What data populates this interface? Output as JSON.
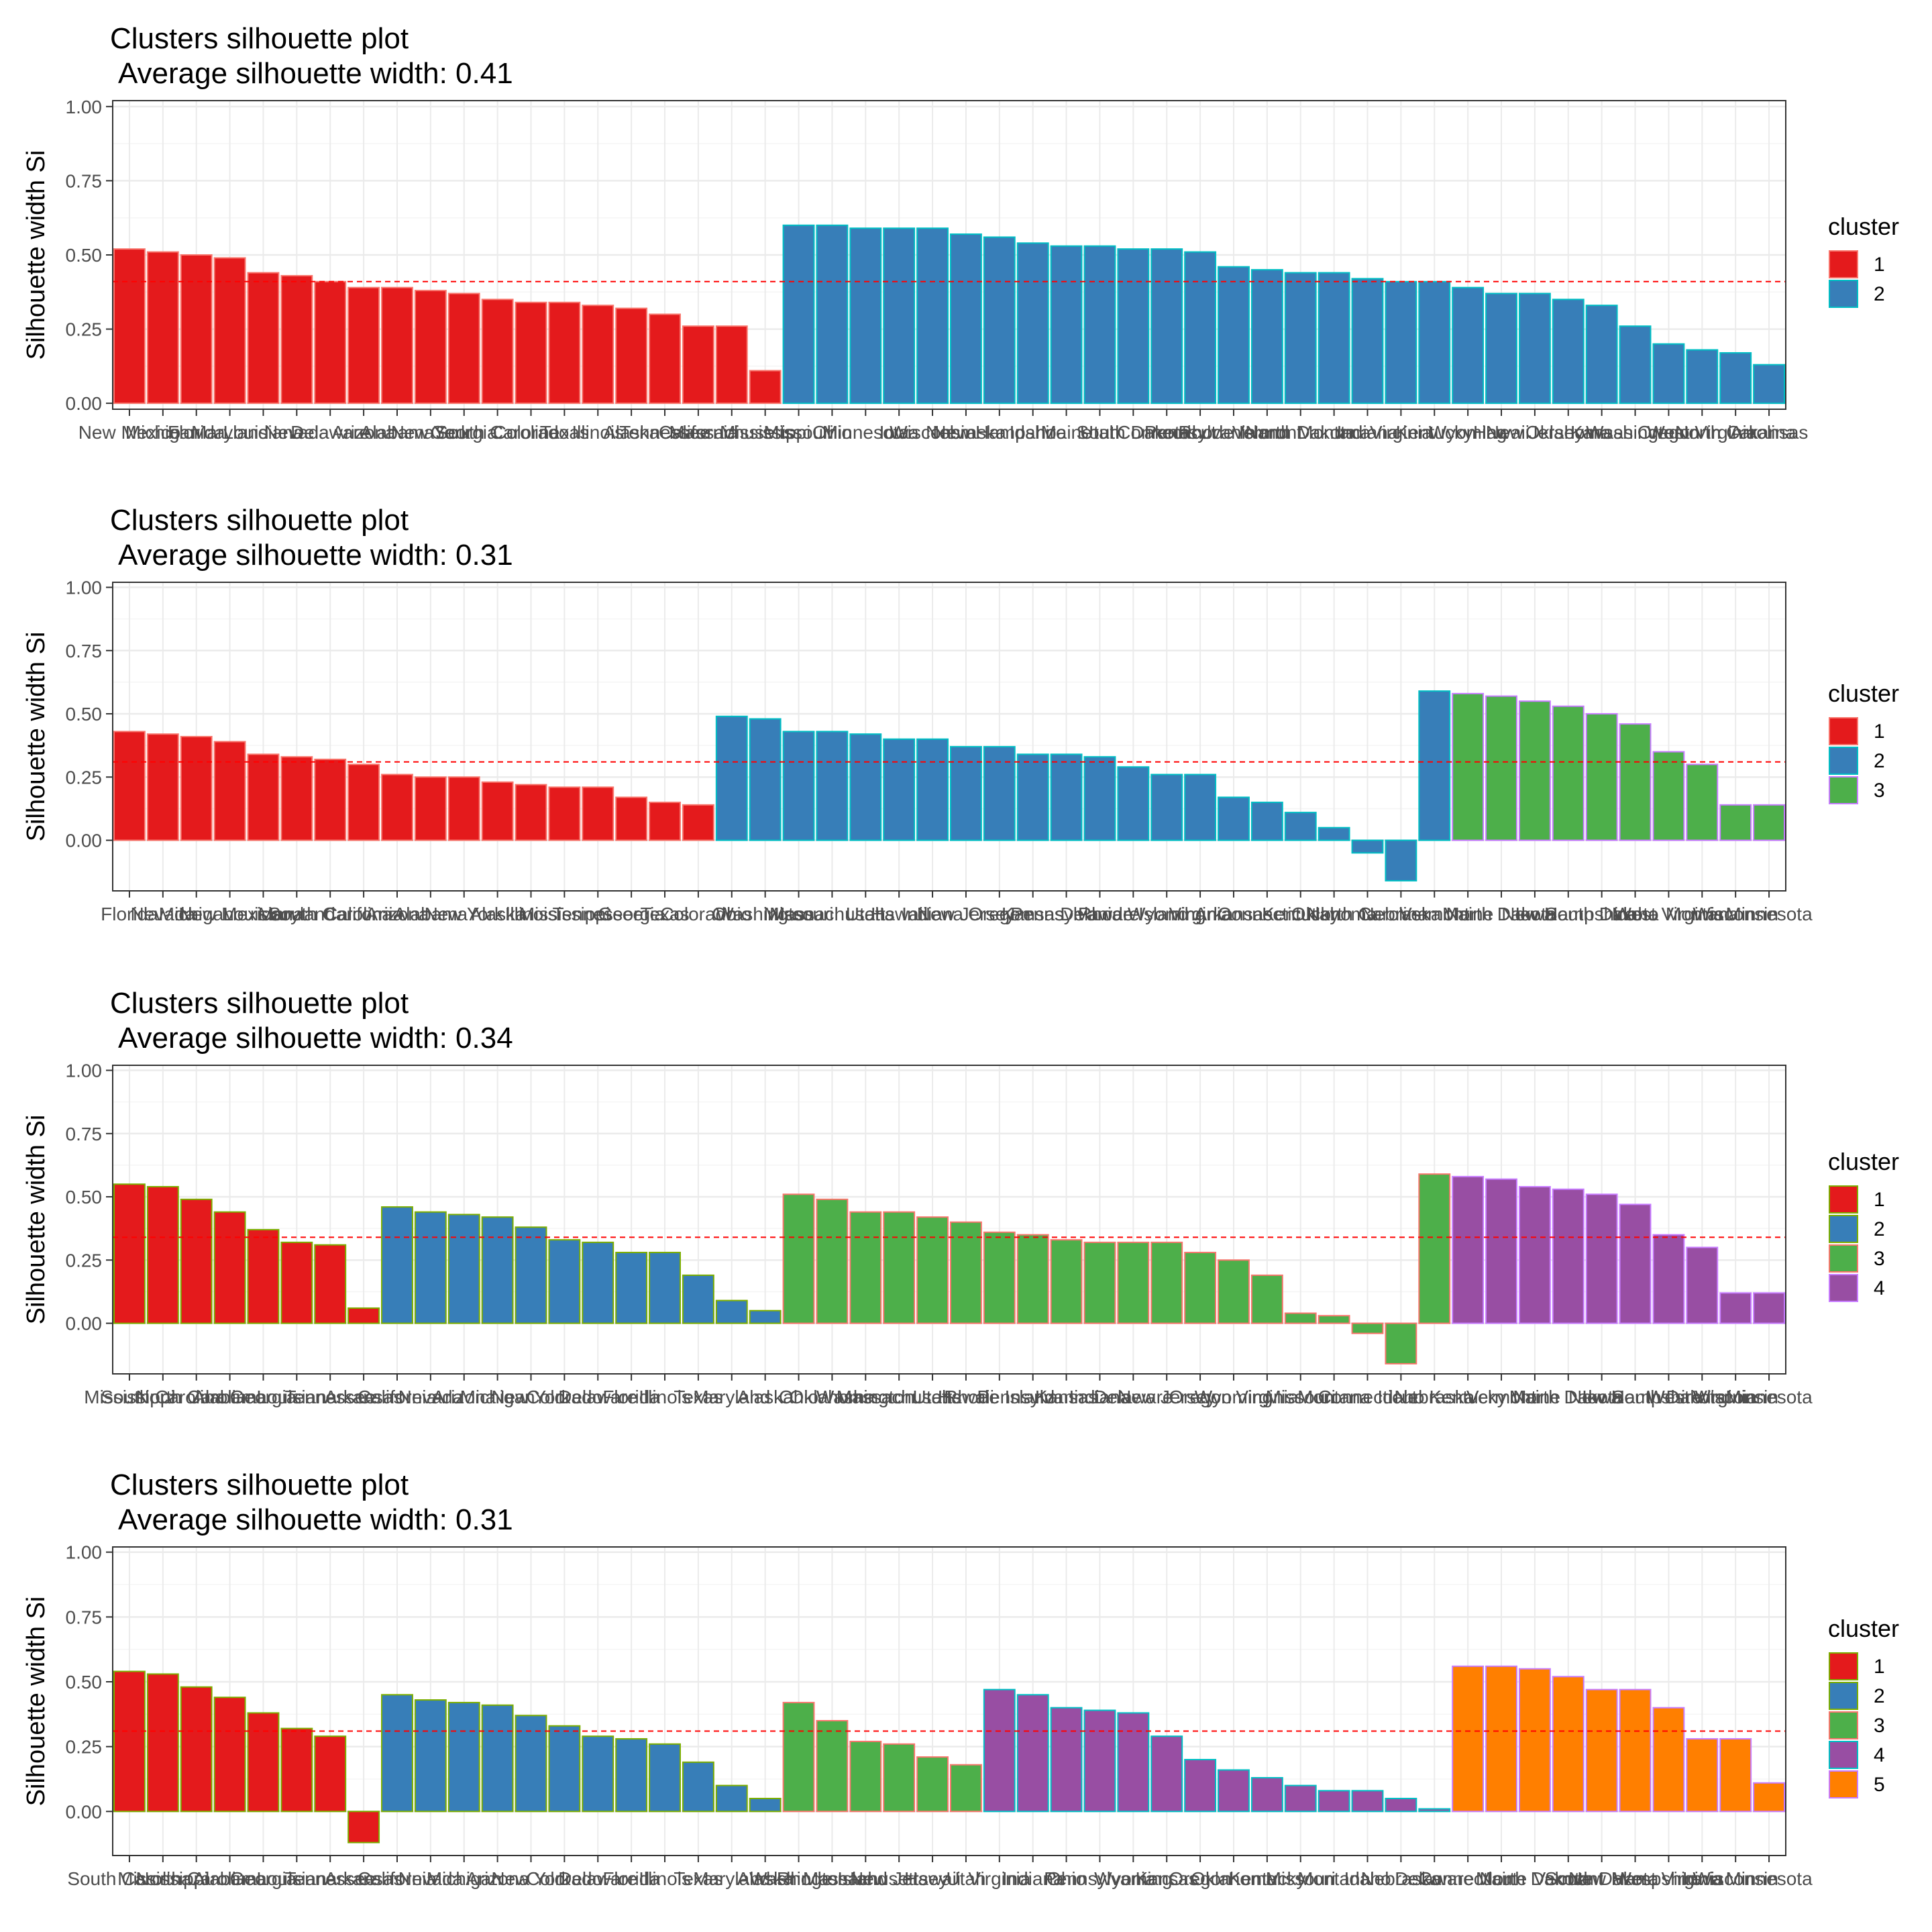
{
  "colors": {
    "cluster_fill": [
      "#E41A1C",
      "#377EB8",
      "#4DAF4A",
      "#984EA3",
      "#FF7F00"
    ],
    "cluster_outline": [
      "#F8766D",
      "#7CAE00",
      "#00BFC4",
      "#C77CFF"
    ],
    "average_line": "#FF0000",
    "panel_border": "#333333",
    "grid_major": "#EBEBEB",
    "grid_minor": "#F5F5F5"
  },
  "chart_data": [
    {
      "type": "bar",
      "title": "Clusters silhouette plot",
      "subtitle": "Average silhouette width: 0.41",
      "ylabel": "Silhouette width Si",
      "xlabel": "",
      "legend_title": "cluster",
      "legend_labels": [
        "1",
        "2"
      ],
      "legend_position": "right",
      "grid": true,
      "ylim": [
        -0.02,
        1.02
      ],
      "y_ticks": [
        "0.00",
        "0.25",
        "0.50",
        "0.75",
        "1.00"
      ],
      "average_line": 0.41,
      "categories": [
        "New Mexico",
        "Michigan",
        "Florida",
        "Maryland",
        "Louisiana",
        "Nevada",
        "Delaware",
        "Arizona",
        "Alabama",
        "New York",
        "Georgia",
        "South Carolina",
        "Colorado",
        "Texas",
        "Illinois",
        "Alaska",
        "Tennessee",
        "California",
        "Massachusetts",
        "Mississippi",
        "Missouri",
        "Ohio",
        "Minnesota",
        "Iowa",
        "Wisconsin",
        "Nebraska",
        "New Hampshire",
        "Idaho",
        "Maine",
        "Utah",
        "South Dakota",
        "Connecticut",
        "Pennsylvania",
        "Rhode Island",
        "Vermont",
        "North Dakota",
        "Montana",
        "Indiana",
        "Virginia",
        "Kentucky",
        "Wyoming",
        "Hawaii",
        "New Jersey",
        "Oklahoma",
        "Kansas",
        "Washington",
        "Oregon",
        "West Virginia",
        "North Carolina",
        "Arkansas"
      ],
      "clusters": [
        1,
        1,
        1,
        1,
        1,
        1,
        1,
        1,
        1,
        1,
        1,
        1,
        1,
        1,
        1,
        1,
        1,
        1,
        1,
        1,
        2,
        2,
        2,
        2,
        2,
        2,
        2,
        2,
        2,
        2,
        2,
        2,
        2,
        2,
        2,
        2,
        2,
        2,
        2,
        2,
        2,
        2,
        2,
        2,
        2,
        2,
        2,
        2,
        2,
        2
      ],
      "values": [
        0.52,
        0.51,
        0.5,
        0.49,
        0.44,
        0.43,
        0.41,
        0.39,
        0.39,
        0.38,
        0.37,
        0.35,
        0.34,
        0.34,
        0.33,
        0.32,
        0.3,
        0.26,
        0.26,
        0.11,
        0.6,
        0.6,
        0.59,
        0.59,
        0.59,
        0.57,
        0.56,
        0.54,
        0.53,
        0.53,
        0.52,
        0.52,
        0.51,
        0.46,
        0.45,
        0.44,
        0.44,
        0.42,
        0.41,
        0.41,
        0.39,
        0.37,
        0.37,
        0.35,
        0.33,
        0.26,
        0.2,
        0.18,
        0.17,
        0.13
      ]
    },
    {
      "type": "bar",
      "title": "Clusters silhouette plot",
      "subtitle": "Average silhouette width: 0.31",
      "ylabel": "Silhouette width Si",
      "xlabel": "",
      "legend_title": "cluster",
      "legend_labels": [
        "1",
        "2",
        "3"
      ],
      "legend_position": "right",
      "grid": true,
      "ylim": [
        -0.2,
        1.02
      ],
      "y_ticks": [
        "0.00",
        "0.25",
        "0.50",
        "0.75",
        "1.00"
      ],
      "average_line": 0.31,
      "categories": [
        "Florida",
        "Nevada",
        "Michigan",
        "New Mexico",
        "Louisiana",
        "Maryland",
        "South Carolina",
        "California",
        "Arizona",
        "Alabama",
        "New York",
        "Alaska",
        "Illinois",
        "Mississippi",
        "Tennessee",
        "Georgia",
        "Texas",
        "Colorado",
        "Ohio",
        "Washington",
        "Missouri",
        "Massachusetts",
        "Utah",
        "Hawaii",
        "Indiana",
        "New Jersey",
        "Oregon",
        "Kansas",
        "Pennsylvania",
        "Delaware",
        "Rhode Island",
        "Wyoming",
        "Virginia",
        "Arkansas",
        "Connecticut",
        "Kentucky",
        "Oklahoma",
        "North Carolina",
        "Nebraska",
        "Vermont",
        "Maine",
        "North Dakota",
        "Iowa",
        "New Hampshire",
        "South Dakota",
        "Idaho",
        "West Virginia",
        "Montana",
        "Wisconsin",
        "Minnesota"
      ],
      "clusters": [
        1,
        1,
        1,
        1,
        1,
        1,
        1,
        1,
        1,
        1,
        1,
        1,
        1,
        1,
        1,
        1,
        1,
        1,
        2,
        2,
        2,
        2,
        2,
        2,
        2,
        2,
        2,
        2,
        2,
        2,
        2,
        2,
        2,
        2,
        2,
        2,
        2,
        2,
        2,
        2,
        3,
        3,
        3,
        3,
        3,
        3,
        3,
        3,
        3,
        3
      ],
      "values": [
        0.43,
        0.42,
        0.41,
        0.39,
        0.34,
        0.33,
        0.32,
        0.3,
        0.26,
        0.25,
        0.25,
        0.23,
        0.22,
        0.21,
        0.21,
        0.17,
        0.15,
        0.14,
        0.49,
        0.48,
        0.43,
        0.43,
        0.42,
        0.4,
        0.4,
        0.37,
        0.37,
        0.34,
        0.34,
        0.33,
        0.29,
        0.26,
        0.26,
        0.17,
        0.15,
        0.11,
        0.05,
        -0.05,
        -0.16,
        0.59,
        0.58,
        0.57,
        0.55,
        0.53,
        0.5,
        0.46,
        0.35,
        0.3,
        0.14,
        0.14
      ],
      "values_note_removed": true
    },
    {
      "type": "bar",
      "title": "Clusters silhouette plot",
      "subtitle": "Average silhouette width: 0.34",
      "ylabel": "Silhouette width Si",
      "xlabel": "",
      "legend_title": "cluster",
      "legend_labels": [
        "1",
        "2",
        "3",
        "4"
      ],
      "legend_position": "right",
      "grid": true,
      "ylim": [
        -0.2,
        1.02
      ],
      "y_ticks": [
        "0.00",
        "0.25",
        "0.50",
        "0.75",
        "1.00"
      ],
      "average_line": 0.34,
      "categories": [
        "Mississippi",
        "South Carolina",
        "North Carolina",
        "Alabama",
        "Georgia",
        "Louisiana",
        "Tennessee",
        "Arkansas",
        "California",
        "Nevada",
        "Arizona",
        "Michigan",
        "New York",
        "Colorado",
        "Delaware",
        "Florida",
        "Illinois",
        "Texas",
        "Maryland",
        "Alaska",
        "Ohio",
        "Oklahoma",
        "Washington",
        "Massachusetts",
        "Utah",
        "Hawaii",
        "Rhode Island",
        "Pennsylvania",
        "Kansas",
        "Indiana",
        "Delaware",
        "New Jersey",
        "Oregon",
        "Wyoming",
        "Virginia",
        "Missouri",
        "Montana",
        "Connecticut",
        "Idaho",
        "Nebraska",
        "Kentucky",
        "Vermont",
        "Maine",
        "North Dakota",
        "Iowa",
        "New Hampshire",
        "South Dakota",
        "West Virginia",
        "Wisconsin",
        "Minnesota"
      ],
      "clusters": [
        1,
        1,
        1,
        1,
        1,
        1,
        1,
        1,
        2,
        2,
        2,
        2,
        2,
        2,
        2,
        2,
        2,
        2,
        2,
        2,
        3,
        3,
        3,
        3,
        3,
        3,
        3,
        3,
        3,
        3,
        3,
        3,
        3,
        3,
        3,
        3,
        3,
        3,
        3,
        3,
        4,
        4,
        4,
        4,
        4,
        4,
        4,
        4,
        4,
        4
      ],
      "values": [
        0.55,
        0.54,
        0.49,
        0.44,
        0.37,
        0.32,
        0.31,
        0.06,
        0.46,
        0.44,
        0.43,
        0.42,
        0.38,
        0.33,
        0.32,
        0.28,
        0.28,
        0.19,
        0.09,
        0.05,
        0.51,
        0.49,
        0.44,
        0.44,
        0.42,
        0.4,
        0.36,
        0.35,
        0.33,
        0.32,
        0.32,
        0.32,
        0.28,
        0.25,
        0.19,
        0.04,
        0.03,
        -0.04,
        -0.16,
        0.59,
        0.58,
        0.57,
        0.54,
        0.53,
        0.51,
        0.47,
        0.35,
        0.3,
        0.12,
        0.12
      ]
    },
    {
      "type": "bar",
      "title": "Clusters silhouette plot",
      "subtitle": "Average silhouette width: 0.31",
      "ylabel": "Silhouette width Si",
      "xlabel": "",
      "legend_title": "cluster",
      "legend_labels": [
        "1",
        "2",
        "3",
        "4",
        "5"
      ],
      "legend_position": "right",
      "grid": true,
      "ylim": [
        -0.17,
        1.02
      ],
      "y_ticks": [
        "0.00",
        "0.25",
        "0.50",
        "0.75",
        "1.00"
      ],
      "average_line": 0.31,
      "categories": [
        "South Carolina",
        "Mississippi",
        "North Carolina",
        "Alabama",
        "Georgia",
        "Louisiana",
        "Tennessee",
        "Arkansas",
        "California",
        "Nevada",
        "Michigan",
        "Arizona",
        "New York",
        "Colorado",
        "Delaware",
        "Florida",
        "Illinois",
        "Texas",
        "Maryland",
        "Alaska",
        "Washington",
        "Rhode Island",
        "Massachusetts",
        "New Jersey",
        "Hawaii",
        "Utah",
        "Virginia",
        "Indiana",
        "Ohio",
        "Pennsylvania",
        "Wyoming",
        "Kansas",
        "Oregon",
        "Oklahoma",
        "Kentucky",
        "Missouri",
        "Montana",
        "Idaho",
        "Nebraska",
        "Delaware",
        "Connecticut",
        "Maine",
        "North Dakota",
        "Vermont",
        "South Dakota",
        "New Hampshire",
        "West Virginia",
        "Iowa",
        "Wisconsin",
        "Minnesota"
      ],
      "clusters": [
        1,
        1,
        1,
        1,
        1,
        1,
        1,
        1,
        2,
        2,
        2,
        2,
        2,
        2,
        2,
        2,
        2,
        2,
        2,
        2,
        3,
        3,
        3,
        3,
        3,
        3,
        4,
        4,
        4,
        4,
        4,
        4,
        4,
        4,
        4,
        4,
        4,
        4,
        4,
        4,
        5,
        5,
        5,
        5,
        5,
        5,
        5,
        5,
        5,
        5
      ],
      "values": [
        0.54,
        0.53,
        0.48,
        0.44,
        0.38,
        0.32,
        0.29,
        -0.12,
        0.45,
        0.43,
        0.42,
        0.41,
        0.37,
        0.33,
        0.29,
        0.28,
        0.26,
        0.19,
        0.1,
        0.05,
        0.42,
        0.35,
        0.27,
        0.26,
        0.21,
        0.18,
        0.47,
        0.45,
        0.4,
        0.39,
        0.38,
        0.29,
        0.2,
        0.16,
        0.13,
        0.1,
        0.08,
        0.08,
        0.05,
        0.01,
        0.56,
        0.56,
        0.55,
        0.52,
        0.47,
        0.47,
        0.4,
        0.28,
        0.28,
        0.11
      ]
    }
  ]
}
